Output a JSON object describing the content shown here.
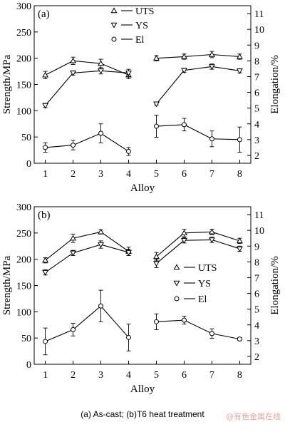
{
  "caption": "(a) As-cast; (b)T6 heat treatment",
  "watermark": "@有色金属在线",
  "colors": {
    "ink": "#000000",
    "background": "#ffffff",
    "watermark": "#e6a3a3"
  },
  "chart_data": [
    {
      "type": "line",
      "panel_label": "(a)",
      "xlabel": "Alloy",
      "ylabel_left": "Strength/MPa",
      "ylabel_right": "Elongation/%",
      "x_ticks": [
        1,
        2,
        3,
        4,
        5,
        6,
        7,
        8
      ],
      "xlim": [
        0.6,
        8.4
      ],
      "ylim_left": [
        0,
        300
      ],
      "ylim_right": [
        1.5,
        11.5
      ],
      "y_ticks_left": [
        0,
        50,
        100,
        150,
        200,
        250,
        300
      ],
      "y_ticks_right": [
        2,
        3,
        4,
        5,
        6,
        7,
        8,
        9,
        10,
        11
      ],
      "legend_position": "top-center",
      "groups": [
        [
          1,
          2,
          3,
          4
        ],
        [
          5,
          6,
          7,
          8
        ]
      ],
      "series": [
        {
          "name": "UTS",
          "marker": "triangle-up",
          "axis": "left",
          "x": [
            1,
            2,
            3,
            4,
            5,
            6,
            7,
            8
          ],
          "values": [
            168,
            195,
            190,
            168,
            200,
            203,
            207,
            203
          ],
          "errors": [
            7,
            7,
            8,
            7,
            5,
            5,
            6,
            5
          ]
        },
        {
          "name": "YS",
          "marker": "triangle-down",
          "axis": "left",
          "x": [
            1,
            2,
            3,
            4,
            5,
            6,
            7,
            8
          ],
          "values": [
            110,
            172,
            176,
            172,
            113,
            177,
            184,
            176
          ],
          "errors": [
            4,
            4,
            6,
            7,
            2,
            4,
            5,
            4
          ]
        },
        {
          "name": "El",
          "marker": "circle",
          "axis": "right",
          "x": [
            1,
            2,
            3,
            4,
            5,
            6,
            7,
            8
          ],
          "values": [
            2.5,
            2.65,
            3.4,
            2.25,
            3.85,
            3.95,
            3.05,
            3.0
          ],
          "errors": [
            0.3,
            0.3,
            0.6,
            0.25,
            0.7,
            0.4,
            0.5,
            0.8
          ]
        }
      ]
    },
    {
      "type": "line",
      "panel_label": "(b)",
      "xlabel": "Alloy",
      "ylabel_left": "Strength/MPa",
      "ylabel_right": "Elongation/%",
      "x_ticks": [
        1,
        2,
        3,
        4,
        5,
        6,
        7,
        8
      ],
      "xlim": [
        0.6,
        8.4
      ],
      "ylim_left": [
        0,
        300
      ],
      "ylim_right": [
        1.5,
        11.5
      ],
      "y_ticks_left": [
        0,
        50,
        100,
        150,
        200,
        250,
        300
      ],
      "y_ticks_right": [
        2,
        3,
        4,
        5,
        6,
        7,
        8,
        9,
        10,
        11
      ],
      "legend_position": "center-right",
      "groups": [
        [
          1,
          2,
          3,
          4
        ],
        [
          5,
          6,
          7,
          8
        ]
      ],
      "series": [
        {
          "name": "UTS",
          "marker": "triangle-up",
          "axis": "left",
          "x": [
            1,
            2,
            3,
            4,
            5,
            6,
            7,
            8
          ],
          "values": [
            198,
            240,
            252,
            215,
            205,
            250,
            252,
            235
          ],
          "errors": [
            5,
            8,
            4,
            8,
            8,
            7,
            5,
            5
          ]
        },
        {
          "name": "YS",
          "marker": "triangle-down",
          "axis": "left",
          "x": [
            1,
            2,
            3,
            4,
            5,
            6,
            7,
            8
          ],
          "values": [
            175,
            212,
            228,
            213,
            192,
            236,
            237,
            220
          ],
          "errors": [
            5,
            5,
            7,
            6,
            8,
            5,
            5,
            5
          ]
        },
        {
          "name": "El",
          "marker": "circle",
          "axis": "right",
          "x": [
            1,
            2,
            3,
            4,
            5,
            6,
            7,
            8
          ],
          "values": [
            2.95,
            3.7,
            5.2,
            3.2,
            4.2,
            4.3,
            3.45,
            3.1
          ],
          "errors": [
            0.85,
            0.4,
            1.0,
            0.85,
            0.5,
            0.25,
            0.3,
            0.1
          ]
        }
      ]
    }
  ]
}
